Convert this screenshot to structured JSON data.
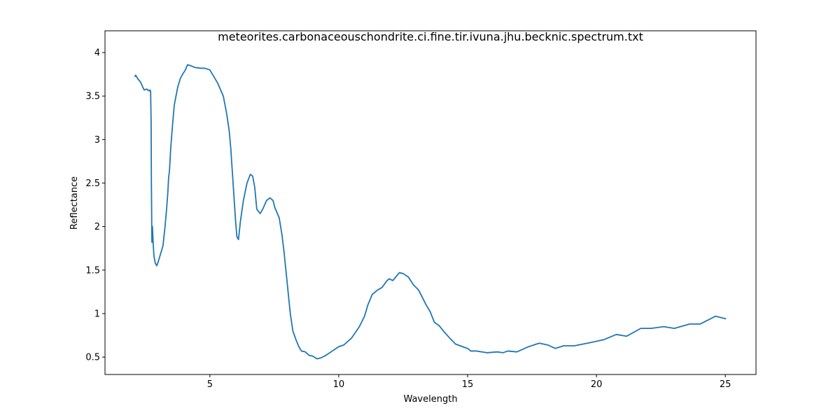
{
  "chart_data": {
    "type": "line",
    "title": "meteorites.carbonaceouschondrite.ci.fine.tir.ivuna.jhu.becknic.spectrum.txt",
    "x_label": "Wavelength",
    "y_label": "Reflectance",
    "x": [
      2.08,
      2.12,
      2.2,
      2.31,
      2.4,
      2.45,
      2.55,
      2.64,
      2.68,
      2.7,
      2.72,
      2.73,
      2.75,
      2.77,
      2.8,
      2.83,
      2.88,
      2.94,
      3.0,
      3.1,
      3.18,
      3.26,
      3.32,
      3.37,
      3.4,
      3.43,
      3.48,
      3.56,
      3.62,
      3.75,
      3.85,
      3.94,
      4.05,
      4.13,
      4.25,
      4.4,
      4.62,
      4.8,
      5.0,
      5.1,
      5.3,
      5.52,
      5.65,
      5.75,
      5.81,
      5.9,
      6.0,
      6.05,
      6.11,
      6.18,
      6.3,
      6.44,
      6.57,
      6.66,
      6.74,
      6.82,
      6.95,
      7.05,
      7.2,
      7.33,
      7.45,
      7.52,
      7.69,
      7.8,
      7.88,
      8.0,
      8.12,
      8.22,
      8.34,
      8.45,
      8.55,
      8.7,
      8.85,
      9.0,
      9.15,
      9.3,
      9.5,
      9.75,
      10.0,
      10.2,
      10.5,
      10.8,
      11.0,
      11.13,
      11.3,
      11.5,
      11.68,
      11.85,
      11.95,
      12.1,
      12.35,
      12.5,
      12.7,
      12.9,
      13.1,
      13.39,
      13.55,
      13.71,
      13.9,
      14.06,
      14.3,
      14.53,
      14.8,
      15.0,
      15.12,
      15.34,
      15.75,
      16.15,
      16.37,
      16.56,
      16.91,
      17.37,
      17.78,
      18.1,
      18.4,
      18.73,
      19.14,
      19.82,
      20.28,
      20.77,
      21.17,
      21.72,
      22.12,
      22.61,
      23.02,
      23.62,
      24.02,
      24.62,
      25.03
    ],
    "values": [
      3.72,
      3.74,
      3.7,
      3.66,
      3.6,
      3.57,
      3.58,
      3.56,
      3.57,
      3.55,
      3.2,
      2.5,
      1.82,
      2.0,
      1.8,
      1.66,
      1.58,
      1.55,
      1.6,
      1.7,
      1.78,
      2.0,
      2.2,
      2.4,
      2.57,
      2.63,
      2.9,
      3.2,
      3.4,
      3.6,
      3.7,
      3.75,
      3.8,
      3.86,
      3.85,
      3.83,
      3.82,
      3.82,
      3.8,
      3.75,
      3.65,
      3.5,
      3.3,
      3.1,
      2.9,
      2.5,
      2.05,
      1.88,
      1.85,
      2.05,
      2.3,
      2.5,
      2.6,
      2.58,
      2.45,
      2.2,
      2.15,
      2.2,
      2.3,
      2.33,
      2.3,
      2.22,
      2.1,
      1.9,
      1.7,
      1.35,
      1.0,
      0.8,
      0.7,
      0.62,
      0.57,
      0.56,
      0.52,
      0.51,
      0.48,
      0.49,
      0.52,
      0.57,
      0.62,
      0.64,
      0.72,
      0.85,
      0.97,
      1.1,
      1.22,
      1.27,
      1.3,
      1.37,
      1.4,
      1.38,
      1.47,
      1.46,
      1.42,
      1.33,
      1.27,
      1.1,
      1.02,
      0.9,
      0.86,
      0.8,
      0.72,
      0.65,
      0.62,
      0.6,
      0.57,
      0.57,
      0.55,
      0.56,
      0.55,
      0.57,
      0.56,
      0.62,
      0.66,
      0.64,
      0.6,
      0.63,
      0.63,
      0.67,
      0.7,
      0.76,
      0.74,
      0.83,
      0.83,
      0.85,
      0.83,
      0.88,
      0.88,
      0.97,
      0.94
    ],
    "color": "#1f77b4",
    "xlim": [
      0.93,
      26.19
    ],
    "xticks": [
      5,
      10,
      15,
      20,
      25
    ],
    "ylim": [
      0.3,
      4.25
    ],
    "yticks": [
      0.5,
      1.0,
      1.5,
      2.0,
      2.5,
      3.0,
      3.5,
      4.0
    ]
  }
}
